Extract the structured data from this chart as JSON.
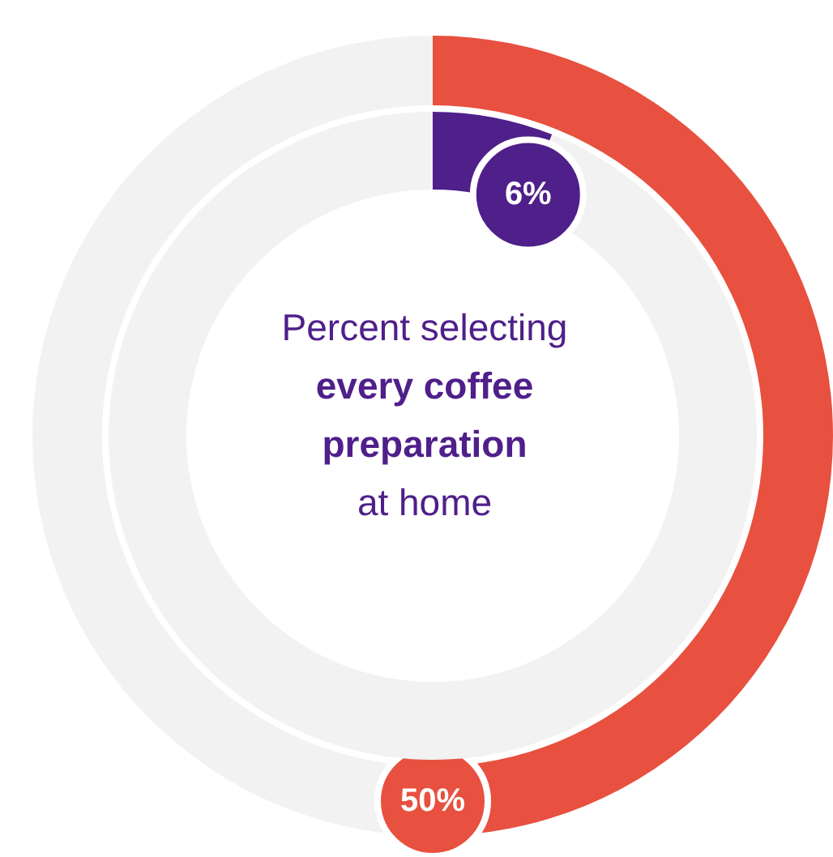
{
  "chart_data": [
    {
      "type": "donut",
      "categories": [
        null,
        null
      ],
      "values": [
        50,
        50
      ],
      "colors": [
        "#e8503f",
        "#f2f2f2"
      ],
      "value_labels": [
        "50%",
        null
      ],
      "legend": false
    },
    {
      "type": "donut",
      "categories": [
        null,
        null
      ],
      "values": [
        6,
        94
      ],
      "colors": [
        "#4f1f8a",
        "#f2f2f2"
      ],
      "value_labels": [
        "6%",
        null
      ],
      "legend": false,
      "annotations": [
        "Percent selecting",
        "every coffee preparation",
        "at home"
      ]
    }
  ]
}
